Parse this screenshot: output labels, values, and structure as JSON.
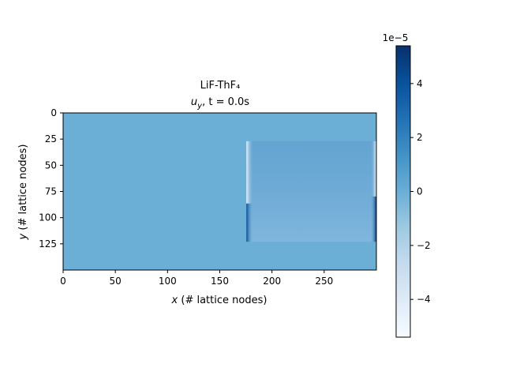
{
  "chart_data": [
    {
      "type": "heatmap",
      "title": "LiF-ThF₄",
      "subtitle_parts": {
        "symbol": "u",
        "subscript": "y",
        "rest": ", t = 0.0s"
      },
      "xlabel_var": "x",
      "xlabel_rest": " (# lattice nodes)",
      "ylabel_var": "y",
      "ylabel_rest": " (# lattice nodes)",
      "xlim": [
        0,
        300
      ],
      "ylim": [
        150,
        0
      ],
      "xticks": [
        0,
        50,
        100,
        150,
        200,
        250
      ],
      "yticks": [
        0,
        25,
        50,
        75,
        100,
        125
      ],
      "colormap": "Blues",
      "background_color": "#6baed6",
      "region": {
        "x": [
          177,
          300
        ],
        "y": [
          27,
          123
        ],
        "color": "#6ba8d4"
      },
      "colorbar": {
        "vmin": -5.4,
        "vmax": 5.4,
        "ticks": [
          -4,
          -2,
          0,
          2,
          4
        ],
        "tick_labels": [
          "−4",
          "−2",
          "0",
          "2",
          "4"
        ],
        "scale_label": "1e−5",
        "cmap_stops": [
          "#f7fbff",
          "#deebf7",
          "#c6dbef",
          "#9ecae1",
          "#6baed6",
          "#4292c6",
          "#2171b5",
          "#08519c",
          "#08306b"
        ]
      }
    }
  ]
}
